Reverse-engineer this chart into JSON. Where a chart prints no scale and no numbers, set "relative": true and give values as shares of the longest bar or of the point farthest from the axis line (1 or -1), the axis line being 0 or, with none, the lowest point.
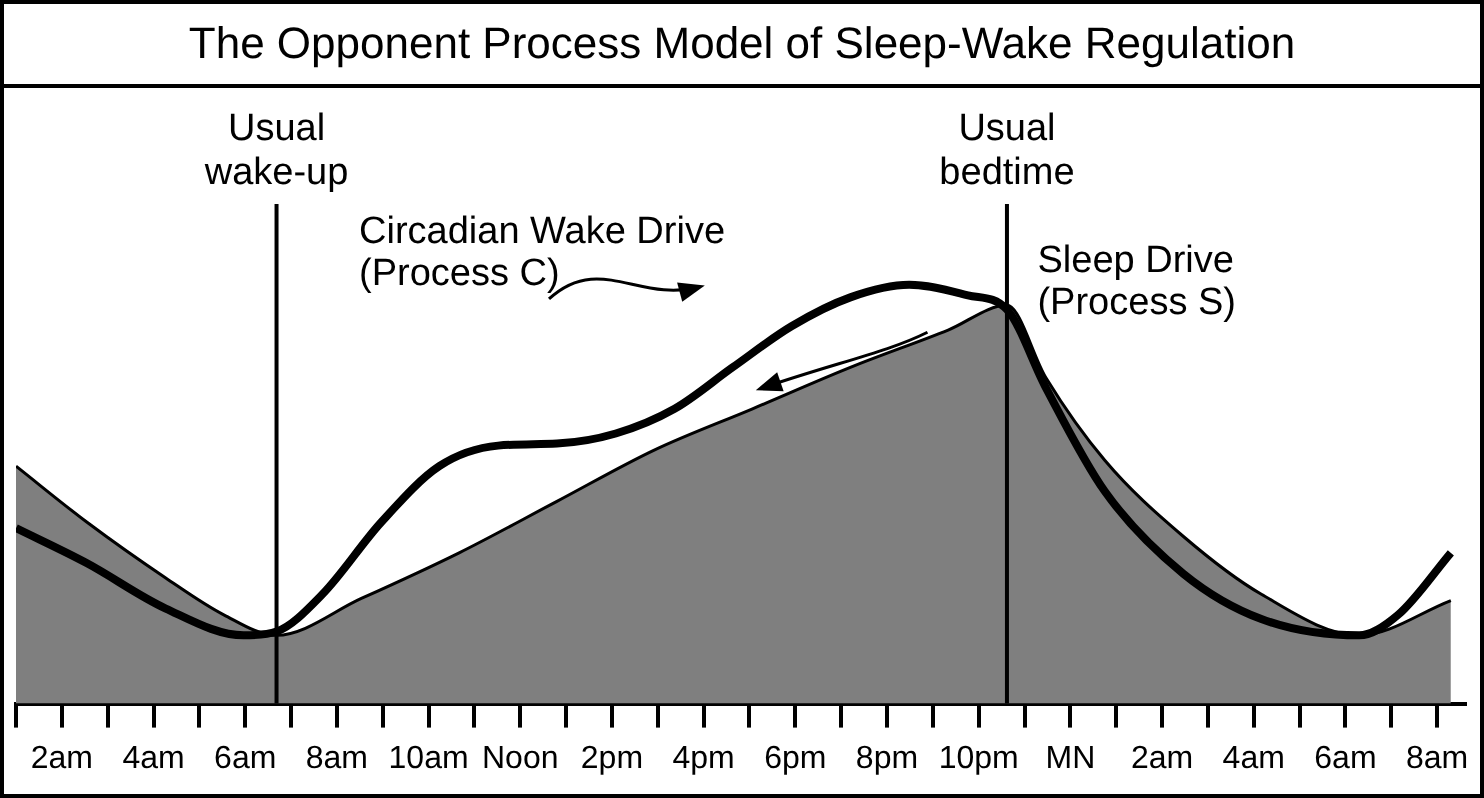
{
  "chart_data": {
    "type": "line",
    "title": "The Opponent Process Model of Sleep-Wake Regulation",
    "relative": true,
    "grid": false,
    "legend": false,
    "xlim": [
      "--01-01T01:00",
      "--01-02T08:36"
    ],
    "xticks": [
      {
        "value": "--01-01T01:00",
        "label": null
      },
      {
        "value": "--01-01T02:00",
        "label": "2am"
      },
      {
        "value": "--01-01T03:00",
        "label": null
      },
      {
        "value": "--01-01T04:00",
        "label": "4am"
      },
      {
        "value": "--01-01T05:00",
        "label": null
      },
      {
        "value": "--01-01T06:00",
        "label": "6am"
      },
      {
        "value": "--01-01T07:00",
        "label": null
      },
      {
        "value": "--01-01T08:00",
        "label": "8am"
      },
      {
        "value": "--01-01T09:00",
        "label": null
      },
      {
        "value": "--01-01T10:00",
        "label": "10am"
      },
      {
        "value": "--01-01T11:00",
        "label": null
      },
      {
        "value": "--01-01T12:00",
        "label": "Noon"
      },
      {
        "value": "--01-01T13:00",
        "label": null
      },
      {
        "value": "--01-01T14:00",
        "label": "2pm"
      },
      {
        "value": "--01-01T15:00",
        "label": null
      },
      {
        "value": "--01-01T16:00",
        "label": "4pm"
      },
      {
        "value": "--01-01T17:00",
        "label": null
      },
      {
        "value": "--01-01T18:00",
        "label": "6pm"
      },
      {
        "value": "--01-01T19:00",
        "label": null
      },
      {
        "value": "--01-01T20:00",
        "label": "8pm"
      },
      {
        "value": "--01-01T21:00",
        "label": null
      },
      {
        "value": "--01-01T22:00",
        "label": "10pm"
      },
      {
        "value": "--01-01T23:00",
        "label": null
      },
      {
        "value": "--01-02T00:00",
        "label": "MN"
      },
      {
        "value": "--01-02T01:00",
        "label": null
      },
      {
        "value": "--01-02T02:00",
        "label": "2am"
      },
      {
        "value": "--01-02T03:00",
        "label": null
      },
      {
        "value": "--01-02T04:00",
        "label": "4am"
      },
      {
        "value": "--01-02T05:00",
        "label": null
      },
      {
        "value": "--01-02T06:00",
        "label": "6am"
      },
      {
        "value": "--01-02T07:00",
        "label": null
      },
      {
        "value": "--01-02T08:00",
        "label": "8am"
      }
    ],
    "series": [
      {
        "name": "Sleep Drive (Process S)",
        "type": "area",
        "color": "#7f7f7f",
        "x": [
          "--01-01T01:00",
          "--01-01T02:33",
          "--01-01T04:16",
          "--01-01T05:32",
          "--01-01T06:41",
          "--01-01T08:32",
          "--01-01T10:40",
          "--01-01T12:48",
          "--01-01T14:56",
          "--01-01T17:04",
          "--01-01T19:12",
          "--01-01T21:20",
          "--01-01T22:37",
          "--01-01T23:28",
          "--01-02T00:45",
          "--01-02T02:28",
          "--01-02T04:10",
          "--01-02T06:18",
          "--01-02T08:18"
        ],
        "values": [
          0.567,
          0.433,
          0.3,
          0.212,
          0.163,
          0.251,
          0.36,
          0.483,
          0.606,
          0.704,
          0.803,
          0.892,
          0.951,
          0.778,
          0.581,
          0.399,
          0.261,
          0.163,
          0.246
        ]
      },
      {
        "name": "Circadian Wake Drive (Process C)",
        "color": "#000000",
        "x": [
          "--01-01T01:00",
          "--01-01T02:33",
          "--01-01T04:16",
          "--01-01T05:58",
          "--01-01T06:41",
          "--01-01T07:41",
          "--01-01T08:58",
          "--01-01T10:14",
          "--01-01T11:31",
          "--01-01T12:48",
          "--01-01T14:05",
          "--01-01T15:22",
          "--01-01T16:38",
          "--01-01T17:55",
          "--01-01T19:12",
          "--01-01T20:29",
          "--01-01T21:46",
          "--01-01T22:37",
          "--01-01T23:28",
          "--01-02T00:45",
          "--01-02T02:28",
          "--01-02T04:10",
          "--01-02T06:18",
          "--01-02T07:09",
          "--01-02T08:18"
        ],
        "values": [
          0.419,
          0.335,
          0.227,
          0.163,
          0.172,
          0.261,
          0.433,
          0.567,
          0.616,
          0.621,
          0.645,
          0.704,
          0.803,
          0.901,
          0.97,
          1,
          0.975,
          0.941,
          0.754,
          0.507,
          0.31,
          0.202,
          0.163,
          0.212,
          0.36
        ]
      }
    ],
    "ref_lines": [
      {
        "axis": "x",
        "value": "--01-01T06:41",
        "label": "Usual wake-up",
        "color": "#000000"
      },
      {
        "axis": "x",
        "value": "--01-01T22:37",
        "label": "Usual bedtime",
        "color": "#000000"
      }
    ]
  }
}
